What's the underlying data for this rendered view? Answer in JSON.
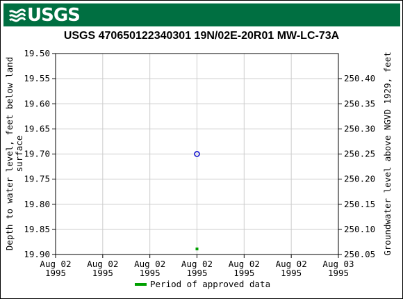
{
  "logo": {
    "text": "USGS",
    "name": "usgs-logo"
  },
  "colors": {
    "banner": "#006f41",
    "approved": "#00a000",
    "point": "#0000cc",
    "grid": "#cccccc"
  },
  "chart_data": {
    "type": "scatter",
    "title": "USGS 470650122340301 19N/02E-20R01 MW-LC-73A",
    "ylabel_left": "Depth to water level, feet below land surface",
    "ylabel_right": "Groundwater level above NGVD 1929, feet",
    "y_left_range": [
      19.5,
      19.9
    ],
    "y_left_inverted": true,
    "y_left_ticks": [
      "19.50",
      "19.55",
      "19.60",
      "19.65",
      "19.70",
      "19.75",
      "19.80",
      "19.85",
      "19.90"
    ],
    "y_right_ticks": [
      "250.40",
      "250.35",
      "250.30",
      "250.25",
      "250.20",
      "250.15",
      "250.10",
      "250.05"
    ],
    "y_right_values": [
      250.4,
      250.35,
      250.3,
      250.25,
      250.2,
      250.15,
      250.1,
      250.05
    ],
    "y_right_range": [
      250.45,
      250.05
    ],
    "x_ticks": [
      {
        "line1": "Aug 02",
        "line2": "1995"
      },
      {
        "line1": "Aug 02",
        "line2": "1995"
      },
      {
        "line1": "Aug 02",
        "line2": "1995"
      },
      {
        "line1": "Aug 02",
        "line2": "1995"
      },
      {
        "line1": "Aug 02",
        "line2": "1995"
      },
      {
        "line1": "Aug 02",
        "line2": "1995"
      },
      {
        "line1": "Aug 03",
        "line2": "1995"
      }
    ],
    "x_range": [
      "1995-08-02T00:00",
      "1995-08-03T00:00"
    ],
    "points": [
      {
        "x": "1995-08-02T12:00",
        "y": 19.7
      }
    ],
    "approved_periods": [
      {
        "x": "1995-08-02T12:00"
      }
    ],
    "grid": true,
    "legend": {
      "position": "bottom-center",
      "label": "Period of approved data"
    }
  }
}
